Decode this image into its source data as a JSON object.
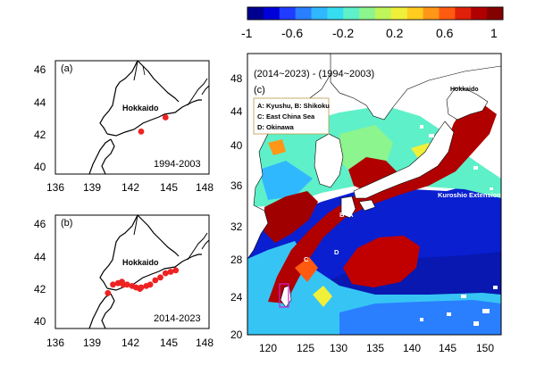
{
  "colorbar": {
    "ticks": [
      "-1",
      "-0.6",
      "-0.2",
      "0.2",
      "0.6",
      "1"
    ],
    "range": [
      -1,
      1
    ],
    "colors": [
      "#00008f",
      "#0000d8",
      "#1f3cff",
      "#2a7fff",
      "#30b8ff",
      "#36dcf0",
      "#5ef0c8",
      "#8cf58e",
      "#c0f55a",
      "#f0f03a",
      "#ffcc20",
      "#ff9618",
      "#ff5a10",
      "#e02008",
      "#b00000",
      "#850000"
    ]
  },
  "panel_a": {
    "label": "(a)",
    "period": "1994-2003",
    "place": "Hokkaido",
    "x_ticks": [
      "136",
      "139",
      "142",
      "145",
      "148"
    ],
    "y_ticks": [
      "46",
      "44",
      "42",
      "40"
    ],
    "points": [
      [
        142.7,
        42.0
      ],
      [
        144.6,
        43.0
      ]
    ]
  },
  "panel_b": {
    "label": "(b)",
    "period": "2014-2023",
    "place": "Hokkaido",
    "x_ticks": [
      "136",
      "139",
      "142",
      "145",
      "148"
    ],
    "y_ticks": [
      "46",
      "44",
      "42",
      "40"
    ],
    "points": [
      [
        140.1,
        41.5
      ],
      [
        140.5,
        42.1
      ],
      [
        140.9,
        42.2
      ],
      [
        141.3,
        42.1
      ],
      [
        141.6,
        42.1
      ],
      [
        142.0,
        42.0
      ],
      [
        142.3,
        41.9
      ],
      [
        142.7,
        41.9
      ],
      [
        143.1,
        42.0
      ],
      [
        143.4,
        42.1
      ],
      [
        143.8,
        42.4
      ],
      [
        144.2,
        42.6
      ],
      [
        144.6,
        42.9
      ],
      [
        145.0,
        43.0
      ],
      [
        145.4,
        43.1
      ],
      [
        141.2,
        42.3
      ],
      [
        142.6,
        41.8
      ]
    ]
  },
  "panel_c": {
    "label": "(c)",
    "title": "(2014~2023) - (1994~2003)",
    "place": "Hokkaido",
    "kuroshio": "Kuroshio Extension",
    "marker_a": "A",
    "marker_b": "B",
    "marker_c": "C",
    "marker_d": "D",
    "legend": [
      "A: Kyushu, B: Shikoku",
      "C: East China Sea",
      "D: Okinawa"
    ],
    "x_ticks": [
      "120",
      "125",
      "130",
      "135",
      "140",
      "145",
      "150"
    ],
    "y_ticks": [
      "48",
      "44",
      "40",
      "36",
      "32",
      "28",
      "24",
      "20"
    ]
  }
}
